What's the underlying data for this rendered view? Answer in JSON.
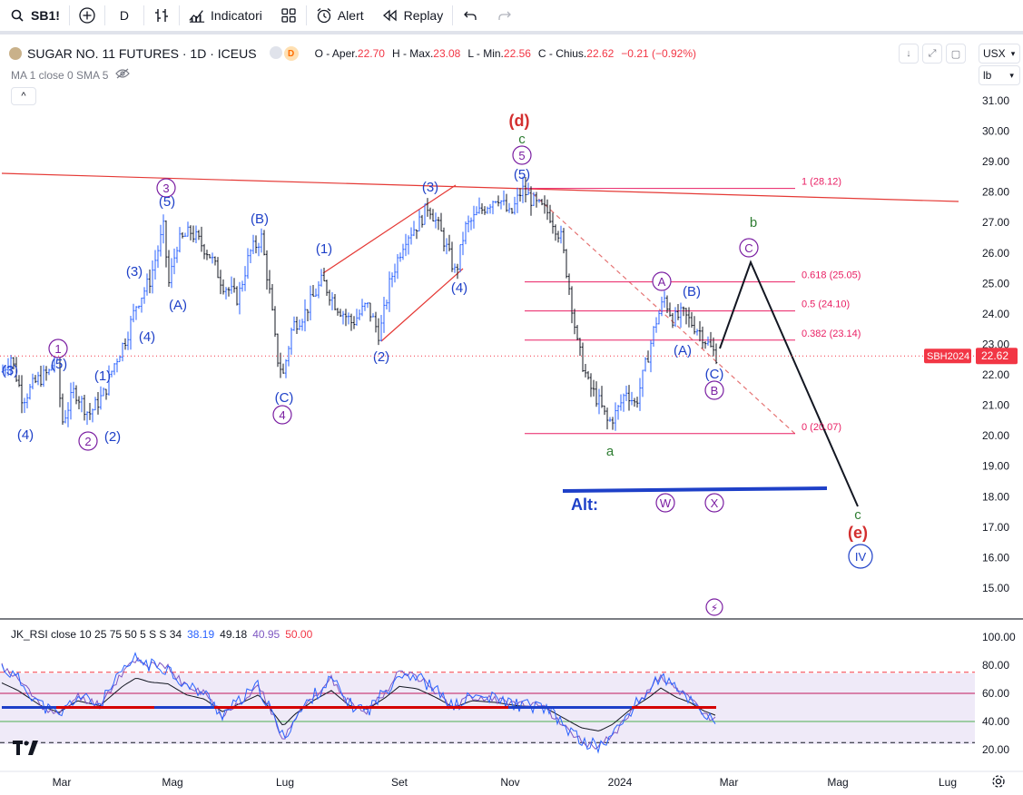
{
  "toolbar": {
    "symbol": "SB1!",
    "interval": "D",
    "indicators_label": "Indicatori",
    "alert_label": "Alert",
    "replay_label": "Replay"
  },
  "legend": {
    "title": "SUGAR NO. 11 FUTURES · 1D · ICEUS",
    "badge_d": "D",
    "open_label": "O - Aper.",
    "open": "22.70",
    "high_label": "H - Max.",
    "high": "23.08",
    "low_label": "L - Min.",
    "low": "22.56",
    "close_label": "C - Chius.",
    "close": "22.62",
    "change": "−0.21 (−0.92%)",
    "ma_row": "MA 1 close 0 SMA 5",
    "collapse": "^"
  },
  "scale": {
    "currency": "USX",
    "unit": "lb",
    "current_symbol": "SBH2024",
    "current_price": "22.62"
  },
  "rsi_legend": {
    "label": "JK_RSI close 10 25 75 50 5 S S 34",
    "v1": "38.19",
    "v2": "49.18",
    "v3": "40.95",
    "v4": "50.00"
  },
  "colors": {
    "up": "#2962ff",
    "down": "#131722",
    "accent_red": "#f23645",
    "fib": "#e91e63",
    "wave_blue": "#1e40c8",
    "wave_purple": "#7b1fa2",
    "wave_green": "#2e7d32",
    "wave_red": "#d32f2f"
  },
  "chart_data": {
    "type": "candlestick",
    "price_ticks": [
      "31.00",
      "30.00",
      "29.00",
      "28.00",
      "27.00",
      "26.00",
      "25.00",
      "24.00",
      "23.00",
      "22.00",
      "21.00",
      "20.00",
      "19.00",
      "18.00",
      "17.00",
      "16.00",
      "15.00"
    ],
    "rsi_ticks": [
      "100.00",
      "80.00",
      "60.00",
      "40.00",
      "20.00"
    ],
    "x_ticks": [
      "Mar",
      "Mag",
      "Lug",
      "Set",
      "Nov",
      "2024",
      "Mar",
      "Mag",
      "Lug"
    ],
    "fib_levels": [
      {
        "label": "1 (28.12)",
        "value": 28.12
      },
      {
        "label": "0.618 (25.05)",
        "value": 25.05
      },
      {
        "label": "0.5 (24.10)",
        "value": 24.1
      },
      {
        "label": "0.382 (23.14)",
        "value": 23.14
      },
      {
        "label": "0 (20.07)",
        "value": 20.07
      }
    ],
    "wave_labels": [
      {
        "text": "(3)",
        "color": "wave_blue",
        "circle": false
      },
      {
        "text": "(4)",
        "color": "wave_blue",
        "circle": false
      },
      {
        "text": "1",
        "color": "wave_purple",
        "circle": true
      },
      {
        "text": "(5)",
        "color": "wave_blue",
        "circle": false
      },
      {
        "text": "2",
        "color": "wave_purple",
        "circle": true
      },
      {
        "text": "(2)",
        "color": "wave_blue",
        "circle": false
      },
      {
        "text": "(1)",
        "color": "wave_blue",
        "circle": false
      },
      {
        "text": "(3)",
        "color": "wave_blue",
        "circle": false
      },
      {
        "text": "(4)",
        "color": "wave_blue",
        "circle": false
      },
      {
        "text": "3",
        "color": "wave_purple",
        "circle": true
      },
      {
        "text": "(5)",
        "color": "wave_blue",
        "circle": false
      },
      {
        "text": "(A)",
        "color": "wave_blue",
        "circle": false
      },
      {
        "text": "(B)",
        "color": "wave_blue",
        "circle": false
      },
      {
        "text": "(C)",
        "color": "wave_blue",
        "circle": false
      },
      {
        "text": "4",
        "color": "wave_purple",
        "circle": true
      },
      {
        "text": "(1)",
        "color": "wave_blue",
        "circle": false
      },
      {
        "text": "(2)",
        "color": "wave_blue",
        "circle": false
      },
      {
        "text": "(3)",
        "color": "wave_blue",
        "circle": false
      },
      {
        "text": "(4)",
        "color": "wave_blue",
        "circle": false
      },
      {
        "text": "(d)",
        "color": "wave_red",
        "circle": false
      },
      {
        "text": "c",
        "color": "wave_green",
        "circle": false
      },
      {
        "text": "5",
        "color": "wave_purple",
        "circle": true
      },
      {
        "text": "(5)",
        "color": "wave_blue",
        "circle": false
      },
      {
        "text": "a",
        "color": "wave_green",
        "circle": false
      },
      {
        "text": "A",
        "color": "wave_purple",
        "circle": true
      },
      {
        "text": "(B)",
        "color": "wave_blue",
        "circle": false
      },
      {
        "text": "(A)",
        "color": "wave_blue",
        "circle": false
      },
      {
        "text": "(C)",
        "color": "wave_blue",
        "circle": false
      },
      {
        "text": "B",
        "color": "wave_purple",
        "circle": true
      },
      {
        "text": "b",
        "color": "wave_green",
        "circle": false
      },
      {
        "text": "C",
        "color": "wave_purple",
        "circle": true
      },
      {
        "text": "c",
        "color": "wave_green",
        "circle": false
      },
      {
        "text": "(e)",
        "color": "wave_red",
        "circle": false
      },
      {
        "text": "IV",
        "color": "wave_blue",
        "circle": true
      },
      {
        "text": "Alt:",
        "color": "wave_blue",
        "circle": false
      },
      {
        "text": "W",
        "color": "wave_purple",
        "circle": true
      },
      {
        "text": "X",
        "color": "wave_purple",
        "circle": true
      }
    ],
    "projection_path": [
      22.9,
      25.8,
      18.0
    ],
    "rsi_levels": {
      "upper": 75,
      "mid_upper": 60,
      "mid": 50,
      "lower_mid": 40,
      "lower": 25
    }
  }
}
